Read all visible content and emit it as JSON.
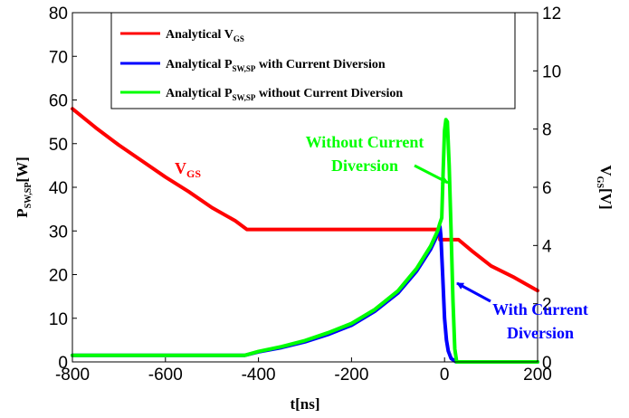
{
  "chart_data": {
    "type": "line",
    "xlabel": {
      "main": "t",
      "unit": "[ns]"
    },
    "ylabel_left": {
      "main": "P",
      "sub": "SW,SP",
      "unit": "[W]"
    },
    "ylabel_right": {
      "main": "V",
      "sub": "GS",
      "unit": "[V]"
    },
    "xlim": [
      -800,
      200
    ],
    "ylim_left": [
      0,
      80
    ],
    "ylim_right": [
      0,
      12
    ],
    "xticks": [
      "-800",
      "-600",
      "-400",
      "-200",
      "0",
      "200"
    ],
    "yticks_left": [
      "0",
      "10",
      "20",
      "30",
      "40",
      "50",
      "60",
      "70",
      "80"
    ],
    "yticks_right": [
      "0",
      "2",
      "4",
      "6",
      "8",
      "10",
      "12"
    ],
    "grid": false,
    "legend_position": "top-center",
    "legend": [
      {
        "main": "Analytical V",
        "sub": "GS",
        "rest": "",
        "color": "#ff0000"
      },
      {
        "main": "Analytical P",
        "sub": "SW,SP",
        "rest": " with Current Diversion",
        "color": "#0000ff"
      },
      {
        "main": "Analytical P",
        "sub": "SW,SP",
        "rest": " without Current Diversion",
        "color": "#00ff00"
      }
    ],
    "series": [
      {
        "id": "vgs",
        "axis": "right",
        "color": "#ff0000",
        "points": [
          [
            -800,
            8.7
          ],
          [
            -750,
            8.05
          ],
          [
            -700,
            7.45
          ],
          [
            -650,
            6.9
          ],
          [
            -600,
            6.35
          ],
          [
            -550,
            5.85
          ],
          [
            -500,
            5.3
          ],
          [
            -450,
            4.85
          ],
          [
            -425,
            4.55
          ],
          [
            -300,
            4.55
          ],
          [
            -200,
            4.55
          ],
          [
            -100,
            4.55
          ],
          [
            -10,
            4.55
          ],
          [
            -10,
            4.2
          ],
          [
            30,
            4.2
          ],
          [
            60,
            3.8
          ],
          [
            100,
            3.3
          ],
          [
            150,
            2.9
          ],
          [
            200,
            2.45
          ]
        ]
      },
      {
        "id": "p_with",
        "axis": "left",
        "color": "#0000ff",
        "points": [
          [
            -800,
            1.5
          ],
          [
            -600,
            1.5
          ],
          [
            -430,
            1.5
          ],
          [
            -400,
            2.3
          ],
          [
            -350,
            3.3
          ],
          [
            -300,
            4.6
          ],
          [
            -250,
            6.3
          ],
          [
            -200,
            8.4
          ],
          [
            -150,
            11.6
          ],
          [
            -100,
            15.8
          ],
          [
            -60,
            20.8
          ],
          [
            -30,
            25.8
          ],
          [
            -15,
            29.2
          ],
          [
            -10,
            31
          ],
          [
            -8,
            29
          ],
          [
            -4,
            20
          ],
          [
            0,
            10
          ],
          [
            4,
            5
          ],
          [
            8,
            2.5
          ],
          [
            14,
            0.8
          ],
          [
            25,
            0
          ],
          [
            200,
            0
          ]
        ]
      },
      {
        "id": "p_without",
        "axis": "left",
        "color": "#00ff00",
        "points": [
          [
            -800,
            1.5
          ],
          [
            -600,
            1.5
          ],
          [
            -430,
            1.5
          ],
          [
            -400,
            2.4
          ],
          [
            -350,
            3.5
          ],
          [
            -300,
            4.9
          ],
          [
            -250,
            6.7
          ],
          [
            -200,
            8.8
          ],
          [
            -150,
            12
          ],
          [
            -100,
            16.3
          ],
          [
            -60,
            21.4
          ],
          [
            -30,
            26.5
          ],
          [
            -15,
            30
          ],
          [
            -10,
            31.8
          ],
          [
            -6,
            33
          ],
          [
            -3,
            44
          ],
          [
            0,
            53
          ],
          [
            3,
            55.5
          ],
          [
            6,
            55
          ],
          [
            10,
            45
          ],
          [
            14,
            30
          ],
          [
            18,
            14
          ],
          [
            22,
            3
          ],
          [
            26,
            0
          ],
          [
            200,
            0
          ]
        ]
      }
    ],
    "annotations": [
      {
        "id": "vgs-label",
        "main": "V",
        "sub": "GS",
        "color": "#ff0000"
      },
      {
        "id": "without-label",
        "lines": [
          "Without Current",
          "Diversion"
        ],
        "color": "#00ff00"
      },
      {
        "id": "with-label",
        "lines": [
          "With Current",
          "Diversion"
        ],
        "color": "#0000ff"
      }
    ]
  }
}
